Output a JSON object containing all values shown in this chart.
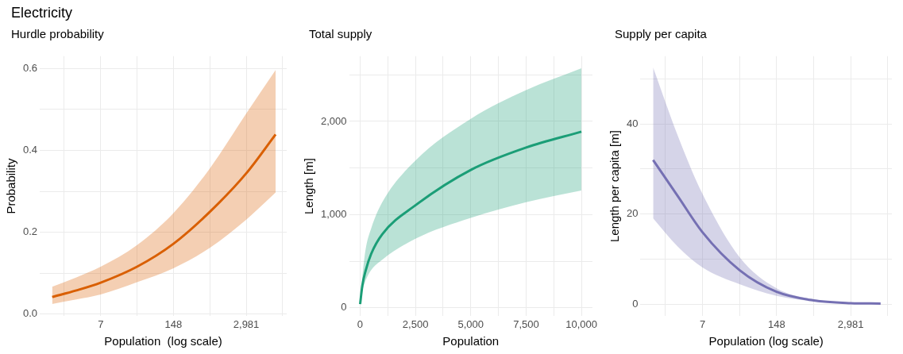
{
  "chart_data": [
    {
      "type": "line",
      "title": "Electricity",
      "subtitle": "Hurdle probability",
      "xlabel": "Population  (log scale)",
      "ylabel": "Probability",
      "log": "x",
      "grid": true,
      "legend": false,
      "marker": "none",
      "xlim": [
        0.63,
        15800
      ],
      "xticks": [
        {
          "value": 1.65,
          "label": null
        },
        {
          "value": 7.389,
          "label": "7"
        },
        {
          "value": 33.12,
          "label": null
        },
        {
          "value": 148.4,
          "label": "148"
        },
        {
          "value": 665.1,
          "label": null
        },
        {
          "value": 2981,
          "label": "2,981"
        },
        {
          "value": 13360,
          "label": null
        }
      ],
      "ylim": [
        -0.005,
        0.63
      ],
      "yticks": [
        {
          "value": 0,
          "label": "0.0"
        },
        {
          "value": 0.1,
          "label": null
        },
        {
          "value": 0.2,
          "label": "0.2"
        },
        {
          "value": 0.3,
          "label": null
        },
        {
          "value": 0.4,
          "label": "0.4"
        },
        {
          "value": 0.5,
          "label": null
        },
        {
          "value": 0.6,
          "label": "0.6"
        }
      ],
      "series": [
        {
          "color": "#d95f02",
          "x": [
            1,
            2.718,
            7.389,
            33.12,
            148.4,
            665.1,
            2981,
            10000
          ],
          "values": [
            0.042,
            0.058,
            0.077,
            0.116,
            0.172,
            0.25,
            0.344,
            0.439
          ],
          "lower": [
            0.025,
            0.036,
            0.048,
            0.078,
            0.112,
            0.162,
            0.231,
            0.297
          ],
          "upper": [
            0.067,
            0.09,
            0.116,
            0.169,
            0.247,
            0.356,
            0.49,
            0.596
          ]
        }
      ]
    },
    {
      "type": "line",
      "title": "Total supply",
      "xlabel": "Population",
      "ylabel": "Length [m]",
      "grid": true,
      "legend": false,
      "marker": "none",
      "xlim": [
        -500,
        10500
      ],
      "xticks": [
        0,
        {
          "value": 1250,
          "label": null
        },
        {
          "value": 2500,
          "label": "2,500"
        },
        {
          "value": 3750,
          "label": null
        },
        {
          "value": 5000,
          "label": "5,000"
        },
        {
          "value": 6250,
          "label": null
        },
        {
          "value": 7500,
          "label": "7,500"
        },
        {
          "value": 8750,
          "label": null
        },
        {
          "value": 10000,
          "label": "10,000"
        }
      ],
      "ylim": [
        -90,
        2700
      ],
      "yticks": [
        0,
        {
          "value": 500,
          "label": null
        },
        {
          "value": 1000,
          "label": "1,000"
        },
        {
          "value": 1500,
          "label": null
        },
        {
          "value": 2000,
          "label": "2,000"
        },
        {
          "value": 2500,
          "label": null
        }
      ],
      "series": [
        {
          "color": "#1b9e77",
          "x": [
            0,
            100,
            250,
            500,
            1000,
            2500,
            5000,
            7500,
            10000
          ],
          "values": [
            40,
            240,
            400,
            580,
            790,
            1100,
            1480,
            1720,
            1890
          ],
          "lower": [
            40,
            180,
            294,
            405,
            517,
            741,
            965,
            1133,
            1259
          ],
          "upper": [
            40,
            330,
            630,
            853,
            1133,
            1580,
            2028,
            2336,
            2571
          ]
        }
      ]
    },
    {
      "type": "line",
      "title": "Supply per capita",
      "xlabel": "Population (log scale)",
      "ylabel": "Length per capita [m]",
      "log": "x",
      "grid": true,
      "legend": false,
      "marker": "none",
      "xlim": [
        0.63,
        15800
      ],
      "xticks": [
        {
          "value": 1.65,
          "label": null
        },
        {
          "value": 7.389,
          "label": "7"
        },
        {
          "value": 33.12,
          "label": null
        },
        {
          "value": 148.4,
          "label": "148"
        },
        {
          "value": 665.1,
          "label": null
        },
        {
          "value": 2981,
          "label": "2,981"
        },
        {
          "value": 13360,
          "label": null
        }
      ],
      "ylim": [
        -2.6,
        55
      ],
      "yticks": [
        0,
        {
          "value": 10,
          "label": null
        },
        {
          "value": 20,
          "label": "20"
        },
        {
          "value": 30,
          "label": null
        },
        {
          "value": 40,
          "label": "40"
        },
        {
          "value": 50,
          "label": null
        }
      ],
      "series": [
        {
          "color": "#7570b3",
          "x": [
            1,
            2.718,
            7.389,
            33.12,
            148.4,
            665.1,
            2981,
            10000
          ],
          "values": [
            32,
            24,
            16,
            7.6,
            2.8,
            0.9,
            0.3,
            0.2
          ],
          "lower": [
            19.1,
            12.8,
            8.2,
            4.5,
            1.9,
            0.7,
            0.22,
            0.13
          ],
          "upper": [
            52.5,
            37.4,
            24.5,
            10.5,
            3.6,
            1.15,
            0.35,
            0.26
          ]
        }
      ]
    }
  ]
}
